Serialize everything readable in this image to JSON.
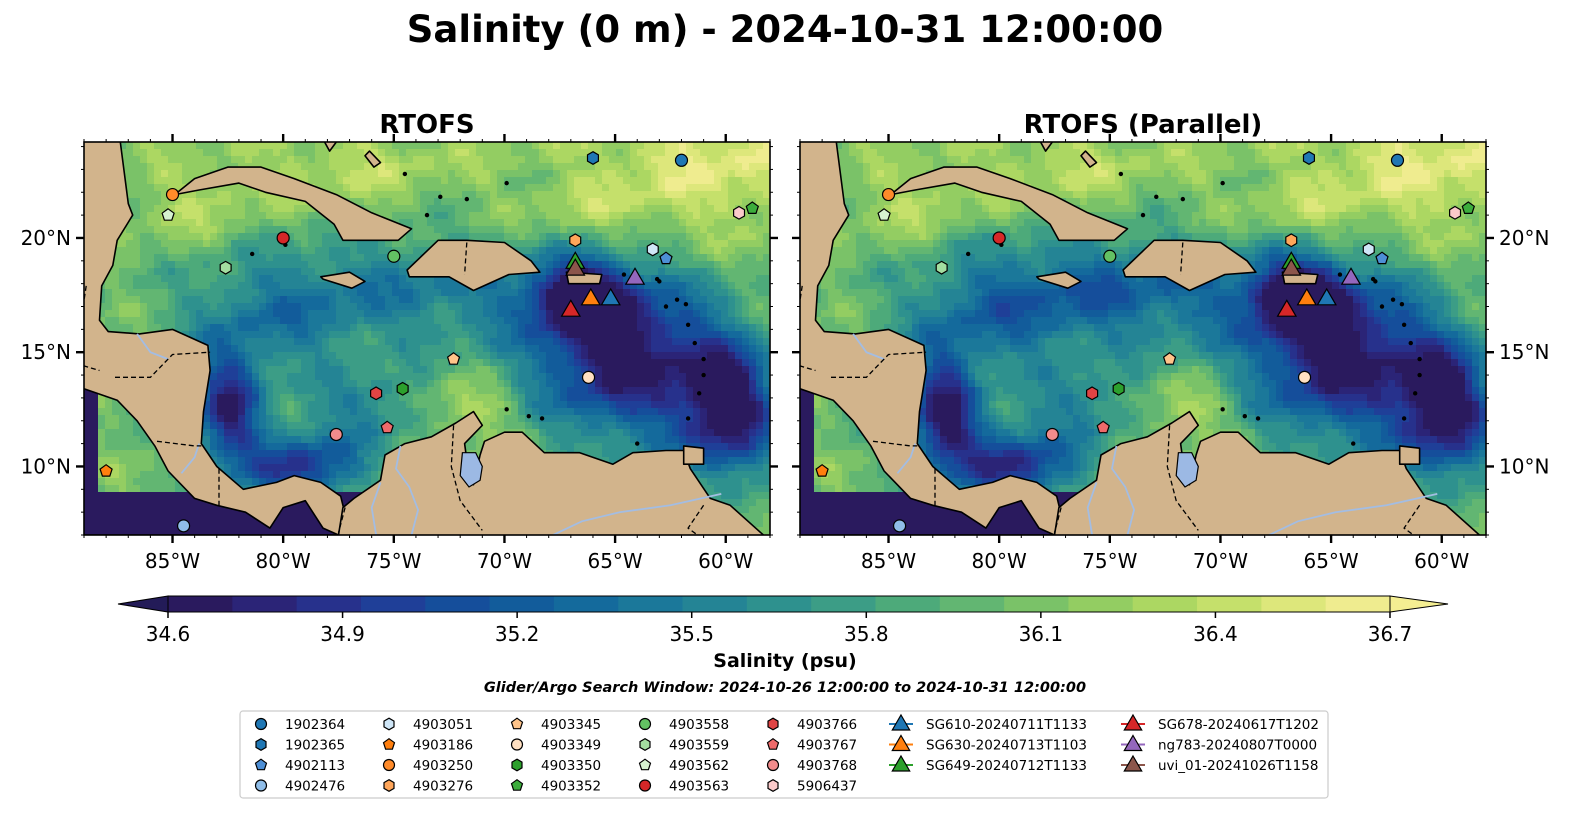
{
  "figure": {
    "title": "Salinity (0 m) - 2024-10-31 12:00:00",
    "search_window": "Glider/Argo Search Window: 2024-10-26 12:00:00 to 2024-10-31 12:00:00"
  },
  "colorbar": {
    "label": "Salinity (psu)",
    "ticks": [
      "34.6",
      "34.9",
      "35.2",
      "35.5",
      "35.8",
      "36.1",
      "36.4",
      "36.7"
    ],
    "range": [
      34.6,
      36.7
    ],
    "extend": "both",
    "palette": [
      "#2a1a5e",
      "#2b2477",
      "#27318c",
      "#1f3f98",
      "#154e9b",
      "#125c9b",
      "#146a9c",
      "#1b789a",
      "#248495",
      "#2e918e",
      "#3c9d86",
      "#4daa7a",
      "#62b672",
      "#7ac268",
      "#93cd62",
      "#acd762",
      "#c5e06b",
      "#dde77b",
      "#efec8f"
    ]
  },
  "legend": {
    "columns": [
      [
        {
          "name": "1902364",
          "marker": "circle",
          "color": "#1f77b4"
        },
        {
          "name": "1902365",
          "marker": "hexagon",
          "color": "#1f77b4"
        },
        {
          "name": "4902113",
          "marker": "pentagon",
          "color": "#4d8fd6"
        },
        {
          "name": "4902476",
          "marker": "circle",
          "color": "#8fbde8"
        }
      ],
      [
        {
          "name": "4903051",
          "marker": "hexagon",
          "color": "#cfe6f7"
        },
        {
          "name": "4903186",
          "marker": "pentagon",
          "color": "#ff7f0e"
        },
        {
          "name": "4903250",
          "marker": "circle",
          "color": "#ff8b2a"
        },
        {
          "name": "4903276",
          "marker": "hexagon",
          "color": "#ffa65a"
        }
      ],
      [
        {
          "name": "4903345",
          "marker": "pentagon",
          "color": "#ffc48a"
        },
        {
          "name": "4903349",
          "marker": "circle",
          "color": "#ffe0c2"
        },
        {
          "name": "4903350",
          "marker": "hexagon",
          "color": "#2ca02c"
        },
        {
          "name": "4903352",
          "marker": "pentagon",
          "color": "#3cad3c"
        }
      ],
      [
        {
          "name": "4903558",
          "marker": "circle",
          "color": "#63c163"
        },
        {
          "name": "4903559",
          "marker": "hexagon",
          "color": "#a4dea0"
        },
        {
          "name": "4903562",
          "marker": "pentagon",
          "color": "#d6f2d0"
        },
        {
          "name": "4903563",
          "marker": "circle",
          "color": "#d62728"
        }
      ],
      [
        {
          "name": "4903766",
          "marker": "hexagon",
          "color": "#e04444"
        },
        {
          "name": "4903767",
          "marker": "pentagon",
          "color": "#ee6a6a"
        },
        {
          "name": "4903768",
          "marker": "circle",
          "color": "#f28c8c"
        },
        {
          "name": "5906437",
          "marker": "hexagon",
          "color": "#fbcaca"
        }
      ],
      [
        {
          "name": "SG610-20240711T1133",
          "marker": "triangle",
          "color": "#1f77b4"
        },
        {
          "name": "SG630-20240713T1103",
          "marker": "triangle",
          "color": "#ff7f0e"
        },
        {
          "name": "SG649-20240712T1133",
          "marker": "triangle",
          "color": "#2ca02c"
        }
      ],
      [
        {
          "name": "SG678-20240617T1202",
          "marker": "triangle",
          "color": "#d62728"
        },
        {
          "name": "ng783-20240807T0000",
          "marker": "triangle",
          "color": "#9467bd"
        },
        {
          "name": "uvi_01-20241026T1158",
          "marker": "triangle",
          "color": "#8c564b"
        }
      ]
    ]
  },
  "chart_data": [
    {
      "type": "heatmap",
      "title": "RTOFS",
      "variable": "Salinity (psu)",
      "xlim": [
        -89,
        -58
      ],
      "ylim": [
        7,
        24.2
      ],
      "xticks": [
        "85°W",
        "80°W",
        "75°W",
        "70°W",
        "65°W",
        "60°W"
      ],
      "yticks": [
        "10°N",
        "15°N",
        "20°N"
      ],
      "ytick_side": "left",
      "land_color": "#d2b48c"
    },
    {
      "type": "heatmap",
      "title": "RTOFS (Parallel)",
      "variable": "Salinity (psu)",
      "xlim": [
        -89,
        -58
      ],
      "ylim": [
        7,
        24.2
      ],
      "xticks": [
        "85°W",
        "80°W",
        "75°W",
        "70°W",
        "65°W",
        "60°W"
      ],
      "yticks": [
        "10°N",
        "15°N",
        "20°N"
      ],
      "ytick_side": "right",
      "land_color": "#d2b48c"
    }
  ],
  "observations": [
    {
      "name": "1902364",
      "lon": -62.0,
      "lat": 23.4
    },
    {
      "name": "1902365",
      "lon": -66.0,
      "lat": 23.5
    },
    {
      "name": "4902113",
      "lon": -62.7,
      "lat": 19.1
    },
    {
      "name": "4902476",
      "lon": -84.5,
      "lat": 7.4
    },
    {
      "name": "4903051",
      "lon": -63.3,
      "lat": 19.5
    },
    {
      "name": "4903186",
      "lon": -88.0,
      "lat": 9.8
    },
    {
      "name": "4903250",
      "lon": -85.0,
      "lat": 21.9
    },
    {
      "name": "4903276",
      "lon": -66.8,
      "lat": 19.9
    },
    {
      "name": "4903345",
      "lon": -72.3,
      "lat": 14.7
    },
    {
      "name": "4903349",
      "lon": -66.2,
      "lat": 13.9
    },
    {
      "name": "4903350",
      "lon": -74.6,
      "lat": 13.4
    },
    {
      "name": "4903352",
      "lon": -58.8,
      "lat": 21.3
    },
    {
      "name": "4903558",
      "lon": -75.0,
      "lat": 19.2
    },
    {
      "name": "4903559",
      "lon": -82.6,
      "lat": 18.7
    },
    {
      "name": "4903562",
      "lon": -85.2,
      "lat": 21.0
    },
    {
      "name": "4903563",
      "lon": -80.0,
      "lat": 20.0
    },
    {
      "name": "4903766",
      "lon": -75.8,
      "lat": 13.2
    },
    {
      "name": "4903767",
      "lon": -75.3,
      "lat": 11.7
    },
    {
      "name": "4903768",
      "lon": -77.6,
      "lat": 11.4
    },
    {
      "name": "5906437",
      "lon": -59.4,
      "lat": 21.1
    },
    {
      "name": "SG610-20240711T1133",
      "lon": -65.2,
      "lat": 17.4
    },
    {
      "name": "SG630-20240713T1103",
      "lon": -66.1,
      "lat": 17.4
    },
    {
      "name": "SG649-20240712T1133",
      "lon": -66.8,
      "lat": 19.0
    },
    {
      "name": "SG678-20240617T1202",
      "lon": -67.0,
      "lat": 16.9
    },
    {
      "name": "ng783-20240807T0000",
      "lon": -64.1,
      "lat": 18.3
    },
    {
      "name": "uvi_01-20241026T1158",
      "lon": -66.8,
      "lat": 18.7
    }
  ]
}
